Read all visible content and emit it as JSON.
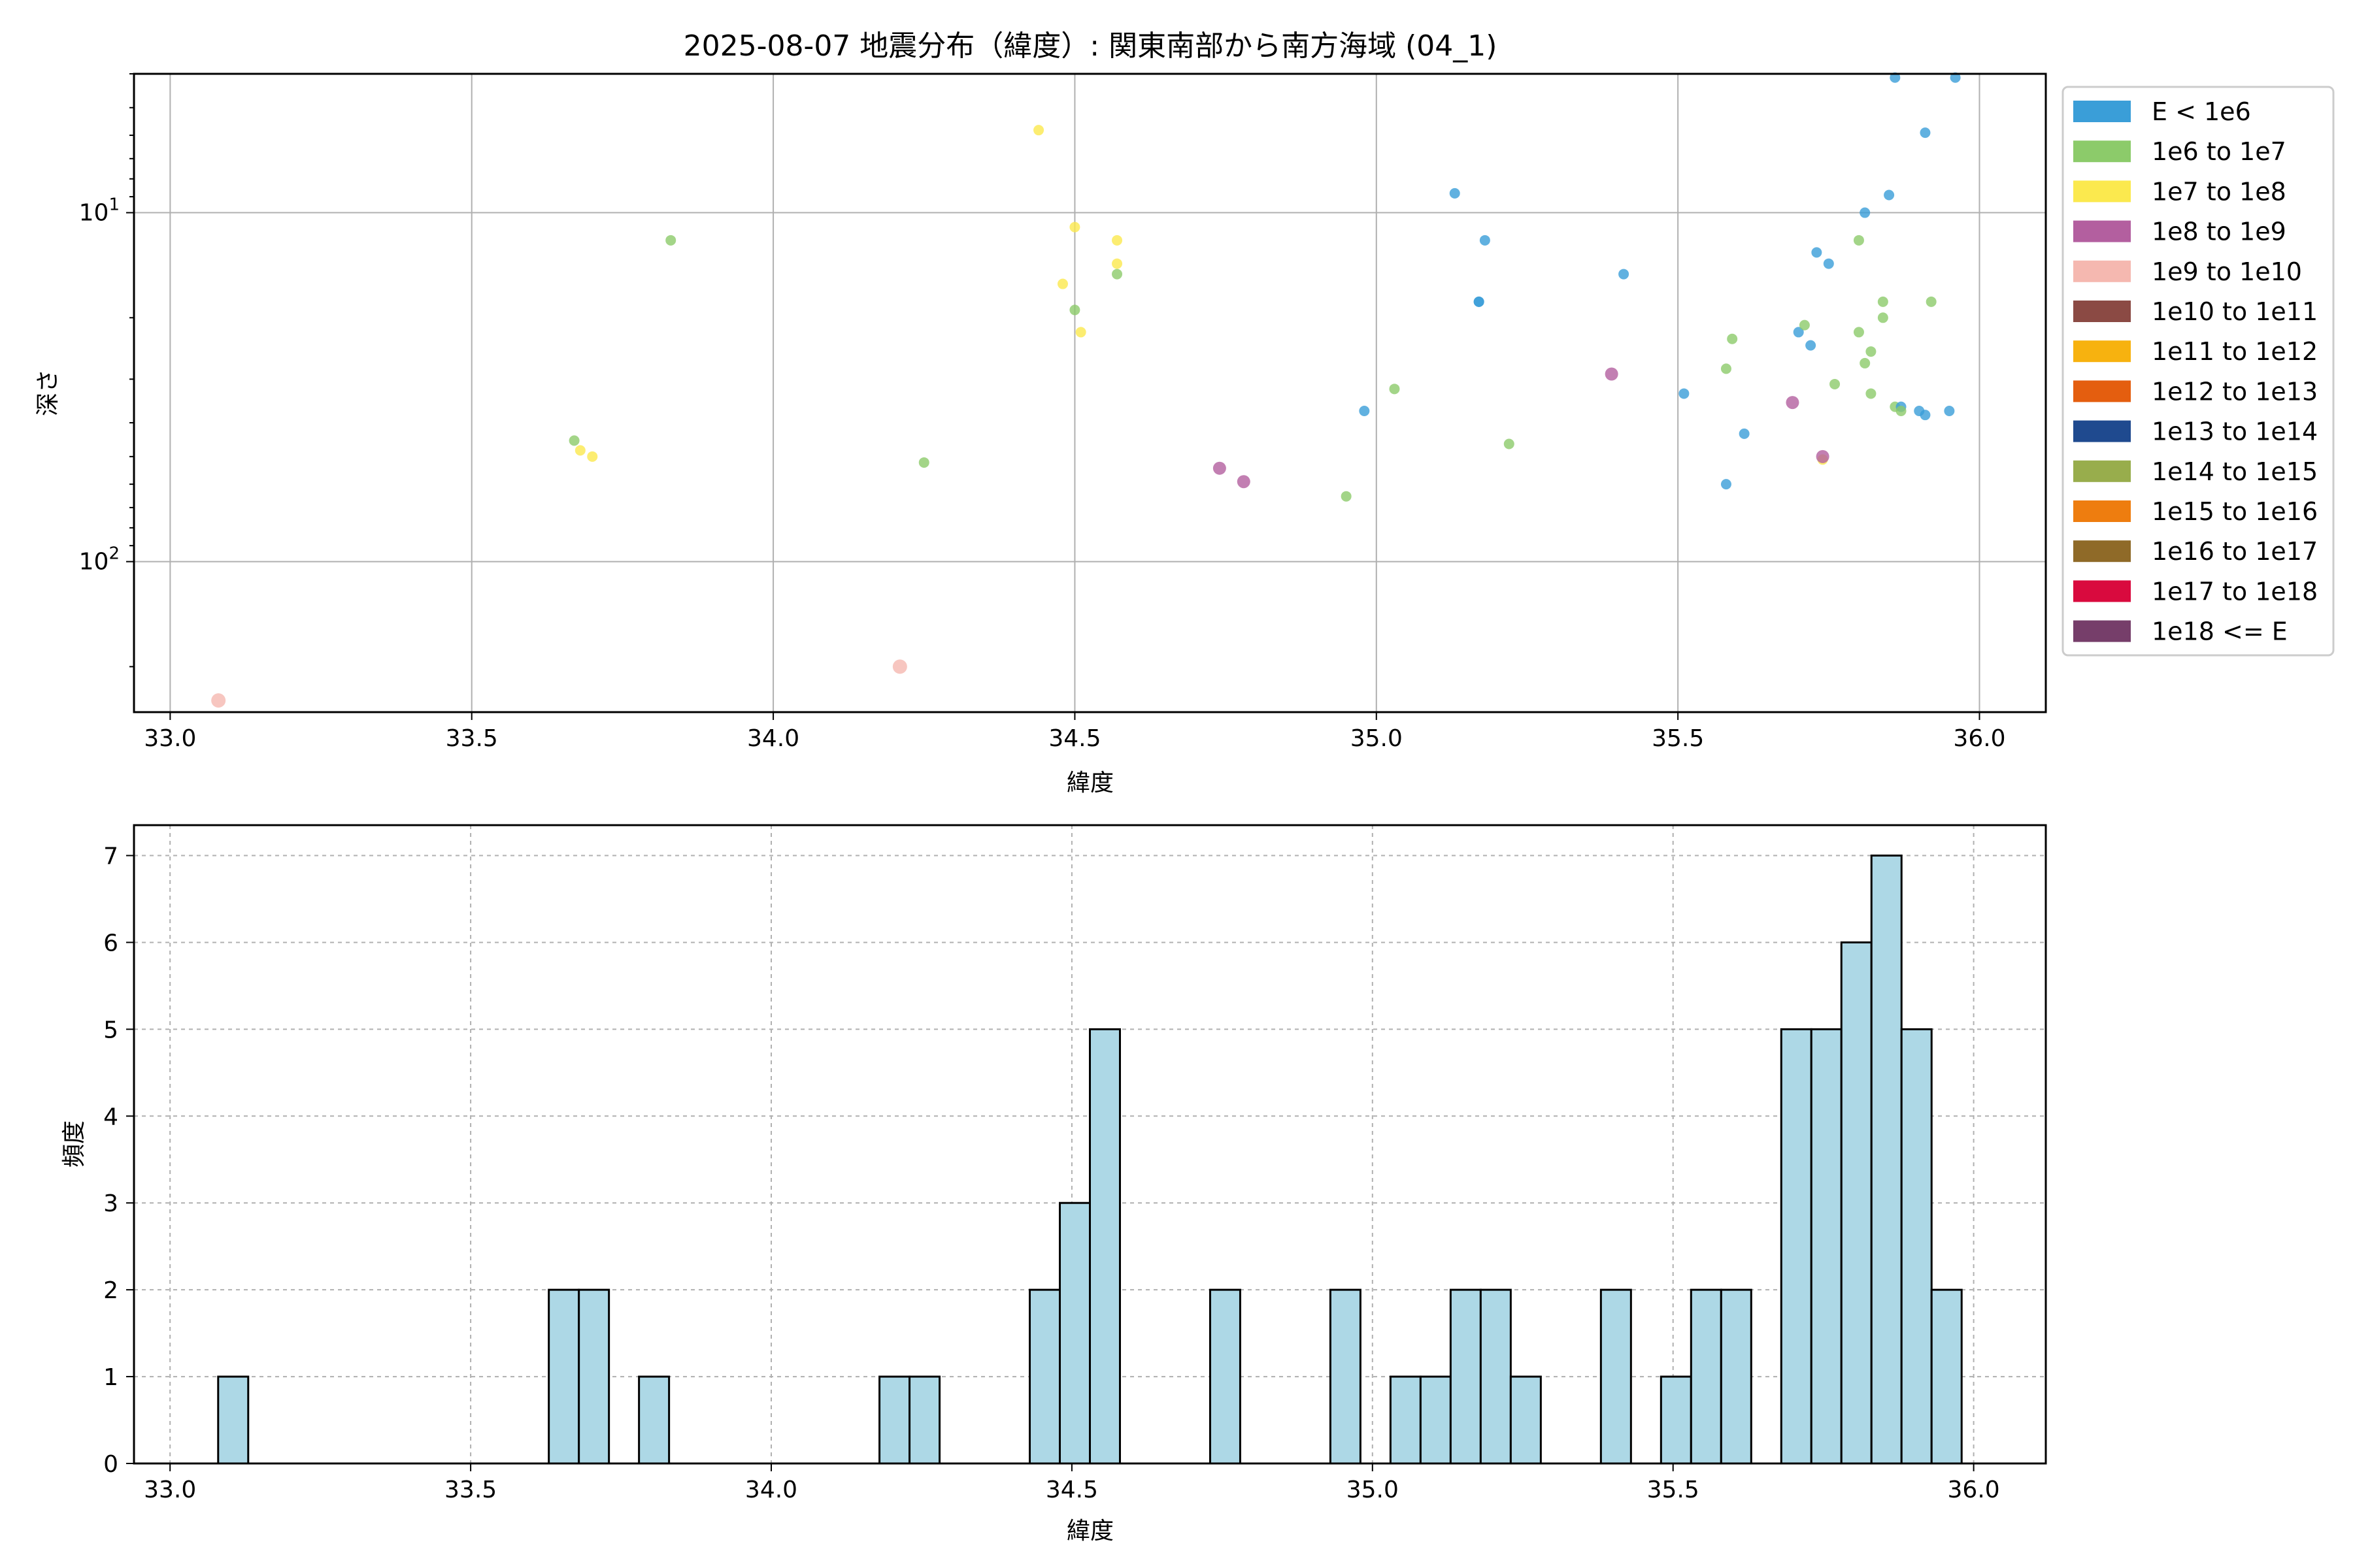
{
  "chart_data": [
    {
      "type": "scatter",
      "title": "2025-08-07 地震分布（緯度）: 関東南部から南方海域 (04_1)",
      "xlabel": "緯度",
      "ylabel": "深さ",
      "xlim": [
        32.94,
        36.11
      ],
      "ylim": [
        270,
        4
      ],
      "yscale": "log",
      "y_inverted": true,
      "grid": true,
      "x_ticks": [
        "33.0",
        "33.5",
        "34.0",
        "34.5",
        "35.0",
        "35.5",
        "36.0"
      ],
      "x_tick_values": [
        33.0,
        33.5,
        34.0,
        34.5,
        35.0,
        35.5,
        36.0
      ],
      "y_ticks": [
        {
          "value": 10,
          "base": "10",
          "exp": "1"
        },
        {
          "value": 100,
          "base": "10",
          "exp": "2"
        }
      ],
      "legend": {
        "position": "outside-right",
        "entries": [
          {
            "label": "E < 1e6",
            "color": "#3a9ed8"
          },
          {
            "label": "1e6 to 1e7",
            "color": "#8ccb6a"
          },
          {
            "label": "1e7 to 1e8",
            "color": "#fbe94e"
          },
          {
            "label": "1e8 to 1e9",
            "color": "#b35f9f"
          },
          {
            "label": "1e9 to 1e10",
            "color": "#f5b8b0"
          },
          {
            "label": "1e10 to 1e11",
            "color": "#8b4a44"
          },
          {
            "label": "1e11 to 1e12",
            "color": "#f7b20f"
          },
          {
            "label": "1e12 to 1e13",
            "color": "#e45e0f"
          },
          {
            "label": "1e13 to 1e14",
            "color": "#1f4a8f"
          },
          {
            "label": "1e14 to 1e15",
            "color": "#98ad4c"
          },
          {
            "label": "1e15 to 1e16",
            "color": "#ee7d0f"
          },
          {
            "label": "1e16 to 1e17",
            "color": "#8f6a28"
          },
          {
            "label": "1e17 to 1e18",
            "color": "#d90a3e"
          },
          {
            "label": "1e18 <= E",
            "color": "#763e6a"
          }
        ]
      },
      "points": [
        {
          "x": 33.08,
          "y": 250,
          "cls": 4
        },
        {
          "x": 33.67,
          "y": 45,
          "cls": 1
        },
        {
          "x": 33.68,
          "y": 48,
          "cls": 2
        },
        {
          "x": 33.7,
          "y": 50,
          "cls": 2
        },
        {
          "x": 33.83,
          "y": 12,
          "cls": 1
        },
        {
          "x": 34.21,
          "y": 200,
          "cls": 4
        },
        {
          "x": 34.25,
          "y": 52,
          "cls": 1
        },
        {
          "x": 34.44,
          "y": 5.8,
          "cls": 2
        },
        {
          "x": 34.48,
          "y": 16,
          "cls": 2
        },
        {
          "x": 34.5,
          "y": 11,
          "cls": 2
        },
        {
          "x": 34.5,
          "y": 19,
          "cls": 1
        },
        {
          "x": 34.51,
          "y": 22,
          "cls": 2
        },
        {
          "x": 34.57,
          "y": 12,
          "cls": 2
        },
        {
          "x": 34.57,
          "y": 14,
          "cls": 2
        },
        {
          "x": 34.57,
          "y": 15,
          "cls": 1
        },
        {
          "x": 34.74,
          "y": 54,
          "cls": 3
        },
        {
          "x": 34.78,
          "y": 59,
          "cls": 3
        },
        {
          "x": 34.95,
          "y": 65,
          "cls": 1
        },
        {
          "x": 34.98,
          "y": 37,
          "cls": 0
        },
        {
          "x": 35.03,
          "y": 32,
          "cls": 1
        },
        {
          "x": 35.13,
          "y": 8.8,
          "cls": 0
        },
        {
          "x": 35.17,
          "y": 18,
          "cls": 0
        },
        {
          "x": 35.17,
          "y": 18,
          "cls": 0
        },
        {
          "x": 35.18,
          "y": 12,
          "cls": 0
        },
        {
          "x": 35.22,
          "y": 46,
          "cls": 1
        },
        {
          "x": 35.39,
          "y": 29,
          "cls": 3
        },
        {
          "x": 35.41,
          "y": 15,
          "cls": 0
        },
        {
          "x": 35.51,
          "y": 33,
          "cls": 0
        },
        {
          "x": 35.58,
          "y": 60,
          "cls": 0
        },
        {
          "x": 35.58,
          "y": 28,
          "cls": 1
        },
        {
          "x": 35.59,
          "y": 23,
          "cls": 1
        },
        {
          "x": 35.61,
          "y": 43,
          "cls": 0
        },
        {
          "x": 35.69,
          "y": 35,
          "cls": 3
        },
        {
          "x": 35.7,
          "y": 22,
          "cls": 0
        },
        {
          "x": 35.71,
          "y": 21,
          "cls": 1
        },
        {
          "x": 35.72,
          "y": 24,
          "cls": 0
        },
        {
          "x": 35.73,
          "y": 13,
          "cls": 0
        },
        {
          "x": 35.74,
          "y": 51,
          "cls": 2
        },
        {
          "x": 35.74,
          "y": 50,
          "cls": 3
        },
        {
          "x": 35.75,
          "y": 14,
          "cls": 0
        },
        {
          "x": 35.76,
          "y": 31,
          "cls": 1
        },
        {
          "x": 35.8,
          "y": 22,
          "cls": 1
        },
        {
          "x": 35.8,
          "y": 12,
          "cls": 1
        },
        {
          "x": 35.81,
          "y": 27,
          "cls": 1
        },
        {
          "x": 35.81,
          "y": 10,
          "cls": 0
        },
        {
          "x": 35.82,
          "y": 25,
          "cls": 1
        },
        {
          "x": 35.82,
          "y": 33,
          "cls": 1
        },
        {
          "x": 35.84,
          "y": 18,
          "cls": 1
        },
        {
          "x": 35.84,
          "y": 20,
          "cls": 1
        },
        {
          "x": 35.85,
          "y": 8.9,
          "cls": 0
        },
        {
          "x": 35.86,
          "y": 4.1,
          "cls": 0
        },
        {
          "x": 35.86,
          "y": 36,
          "cls": 1
        },
        {
          "x": 35.87,
          "y": 36,
          "cls": 0
        },
        {
          "x": 35.87,
          "y": 37,
          "cls": 1
        },
        {
          "x": 35.9,
          "y": 37,
          "cls": 0
        },
        {
          "x": 35.91,
          "y": 38,
          "cls": 0
        },
        {
          "x": 35.91,
          "y": 5.9,
          "cls": 0
        },
        {
          "x": 35.92,
          "y": 18,
          "cls": 1
        },
        {
          "x": 35.95,
          "y": 37,
          "cls": 0
        },
        {
          "x": 35.96,
          "y": 4.1,
          "cls": 0
        }
      ]
    },
    {
      "type": "bar",
      "xlabel": "緯度",
      "ylabel": "頻度",
      "xlim": [
        32.94,
        36.12
      ],
      "ylim": [
        0,
        7.35
      ],
      "grid": true,
      "bin_width": 0.05,
      "bar_color": "#add8e6",
      "edge_color": "#000000",
      "x_ticks": [
        "33.0",
        "33.5",
        "34.0",
        "34.5",
        "35.0",
        "35.5",
        "36.0"
      ],
      "x_tick_values": [
        33.0,
        33.5,
        34.0,
        34.5,
        35.0,
        35.5,
        36.0
      ],
      "y_ticks": [
        "0",
        "1",
        "2",
        "3",
        "4",
        "5",
        "6",
        "7"
      ],
      "y_tick_values": [
        0,
        1,
        2,
        3,
        4,
        5,
        6,
        7
      ],
      "bins": [
        {
          "x": 33.08,
          "count": 1
        },
        {
          "x": 33.63,
          "count": 2
        },
        {
          "x": 33.68,
          "count": 2
        },
        {
          "x": 33.78,
          "count": 1
        },
        {
          "x": 34.18,
          "count": 1
        },
        {
          "x": 34.23,
          "count": 1
        },
        {
          "x": 34.43,
          "count": 2
        },
        {
          "x": 34.48,
          "count": 3
        },
        {
          "x": 34.53,
          "count": 5
        },
        {
          "x": 34.73,
          "count": 2
        },
        {
          "x": 34.93,
          "count": 2
        },
        {
          "x": 35.03,
          "count": 1
        },
        {
          "x": 35.08,
          "count": 1
        },
        {
          "x": 35.13,
          "count": 2
        },
        {
          "x": 35.18,
          "count": 2
        },
        {
          "x": 35.23,
          "count": 1
        },
        {
          "x": 35.38,
          "count": 2
        },
        {
          "x": 35.48,
          "count": 1
        },
        {
          "x": 35.53,
          "count": 2
        },
        {
          "x": 35.58,
          "count": 2
        },
        {
          "x": 35.68,
          "count": 5
        },
        {
          "x": 35.73,
          "count": 5
        },
        {
          "x": 35.78,
          "count": 6
        },
        {
          "x": 35.83,
          "count": 7
        },
        {
          "x": 35.88,
          "count": 5
        },
        {
          "x": 35.93,
          "count": 2
        }
      ]
    }
  ]
}
